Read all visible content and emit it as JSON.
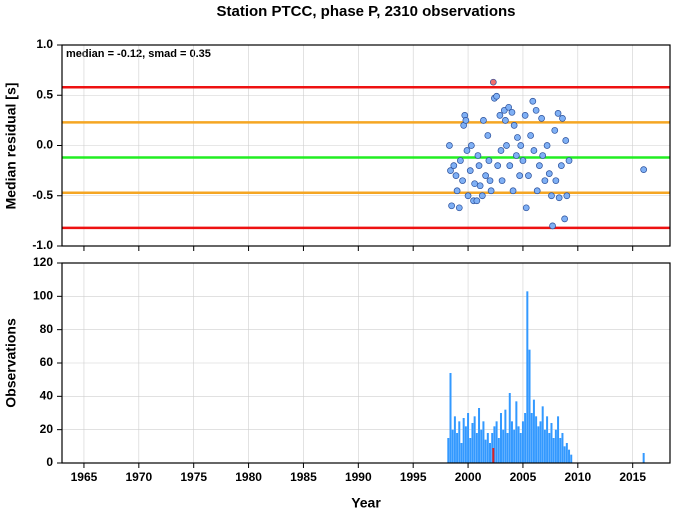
{
  "chart_data": [
    {
      "type": "scatter",
      "title": "Station PTCC, phase P, 2310 observations",
      "ylabel": "Median residual [s]",
      "annotation": "median = -0.12, smad = 0.35",
      "xlim": [
        1963,
        2018.4
      ],
      "xticks": [
        1965,
        1970,
        1975,
        1980,
        1985,
        1990,
        1995,
        2000,
        2005,
        2010,
        2015
      ],
      "ylim": [
        -1,
        1
      ],
      "yticks": [
        {
          "value": 1,
          "label": "1.0"
        },
        0.5,
        {
          "value": 0,
          "label": "0.0"
        },
        -0.5,
        {
          "value": -1,
          "label": "-1.0"
        }
      ],
      "grid": true,
      "reference_lines": [
        {
          "value": 0.58,
          "color": "#ee1111"
        },
        {
          "value": 0.23,
          "color": "#f5a623"
        },
        {
          "value": -0.12,
          "color": "#22ee22"
        },
        {
          "value": -0.47,
          "color": "#f5a623"
        },
        {
          "value": -0.82,
          "color": "#ee1111"
        }
      ],
      "series": [
        {
          "color": "#7fb0f5",
          "x": [
            1998.3,
            1998.4,
            1998.5,
            1998.7,
            1998.9,
            1999.0,
            1999.2,
            1999.3,
            1999.5,
            1999.6,
            1999.7,
            1999.8,
            1999.9,
            2000.0,
            2000.2,
            2000.3,
            2000.5,
            2000.6,
            2000.8,
            2000.9,
            2001.0,
            2001.1,
            2001.3,
            2001.4,
            2001.6,
            2001.8,
            2001.9,
            2002.0,
            2002.1,
            2002.4,
            2002.6,
            2002.7,
            2002.9,
            2003.0,
            2003.1,
            2003.3,
            2003.4,
            2003.5,
            2003.7,
            2003.8,
            2004.0,
            2004.1,
            2004.2,
            2004.4,
            2004.5,
            2004.7,
            2004.8,
            2005.0,
            2005.2,
            2005.3,
            2005.5,
            2005.7,
            2005.9,
            2006.0,
            2006.2,
            2006.3,
            2006.5,
            2006.7,
            2006.8,
            2007.0,
            2007.2,
            2007.4,
            2007.6,
            2007.7,
            2007.9,
            2008.0,
            2008.2,
            2008.3,
            2008.5,
            2008.6,
            2008.8,
            2008.9,
            2009.0,
            2009.2,
            2016.0
          ],
          "values": [
            0.0,
            -0.25,
            -0.6,
            -0.2,
            -0.3,
            -0.45,
            -0.62,
            -0.15,
            -0.35,
            0.2,
            0.3,
            0.25,
            -0.05,
            -0.5,
            -0.25,
            0.0,
            -0.55,
            -0.38,
            -0.55,
            -0.1,
            -0.2,
            -0.4,
            -0.5,
            0.25,
            -0.3,
            0.1,
            -0.15,
            -0.35,
            -0.45,
            0.47,
            0.49,
            -0.2,
            0.3,
            -0.05,
            -0.35,
            0.35,
            0.25,
            0.0,
            0.38,
            -0.2,
            0.33,
            -0.45,
            0.2,
            -0.1,
            0.08,
            -0.3,
            0.0,
            -0.15,
            0.3,
            -0.62,
            -0.3,
            0.1,
            0.44,
            -0.05,
            0.35,
            -0.45,
            -0.2,
            0.27,
            -0.1,
            -0.35,
            0.0,
            -0.28,
            -0.5,
            -0.8,
            0.15,
            -0.35,
            0.32,
            -0.52,
            -0.2,
            0.27,
            -0.73,
            0.05,
            -0.5,
            -0.15,
            -0.24
          ]
        },
        {
          "color": "#f07070",
          "x": [
            2002.3
          ],
          "values": [
            0.63
          ]
        }
      ]
    },
    {
      "type": "bar",
      "xlabel": "Year",
      "ylabel": "Observations",
      "xlim": [
        1963,
        2018.4
      ],
      "xticks": [
        1965,
        1970,
        1975,
        1980,
        1985,
        1990,
        1995,
        2000,
        2005,
        2010,
        2015
      ],
      "ylim": [
        0,
        120
      ],
      "yticks": [
        0,
        20,
        40,
        60,
        80,
        100,
        120
      ],
      "grid": true,
      "series": [
        {
          "color": "#3399ff",
          "x": [
            1998.2,
            1998.4,
            1998.6,
            1998.8,
            1999.0,
            1999.2,
            1999.4,
            1999.6,
            1999.8,
            2000.0,
            2000.2,
            2000.4,
            2000.6,
            2000.8,
            2001.0,
            2001.2,
            2001.4,
            2001.6,
            2001.8,
            2002.0,
            2002.2,
            2002.4,
            2002.6,
            2002.8,
            2003.0,
            2003.2,
            2003.4,
            2003.6,
            2003.8,
            2004.0,
            2004.2,
            2004.4,
            2004.6,
            2004.8,
            2005.0,
            2005.2,
            2005.4,
            2005.6,
            2005.8,
            2006.0,
            2006.2,
            2006.4,
            2006.6,
            2006.8,
            2007.0,
            2007.2,
            2007.4,
            2007.6,
            2007.8,
            2008.0,
            2008.2,
            2008.4,
            2008.6,
            2008.8,
            2009.0,
            2009.2,
            2009.4,
            2016.0
          ],
          "values": [
            15,
            54,
            20,
            28,
            18,
            25,
            12,
            27,
            22,
            30,
            15,
            24,
            28,
            18,
            33,
            20,
            25,
            14,
            18,
            12,
            18,
            22,
            25,
            15,
            30,
            20,
            32,
            18,
            42,
            25,
            20,
            37,
            22,
            18,
            25,
            30,
            103,
            68,
            30,
            38,
            28,
            22,
            25,
            34,
            20,
            28,
            18,
            24,
            15,
            20,
            28,
            15,
            18,
            10,
            12,
            8,
            5,
            6
          ]
        },
        {
          "color": "#dd2222",
          "x": [
            2002.3
          ],
          "values": [
            9
          ]
        }
      ]
    }
  ]
}
